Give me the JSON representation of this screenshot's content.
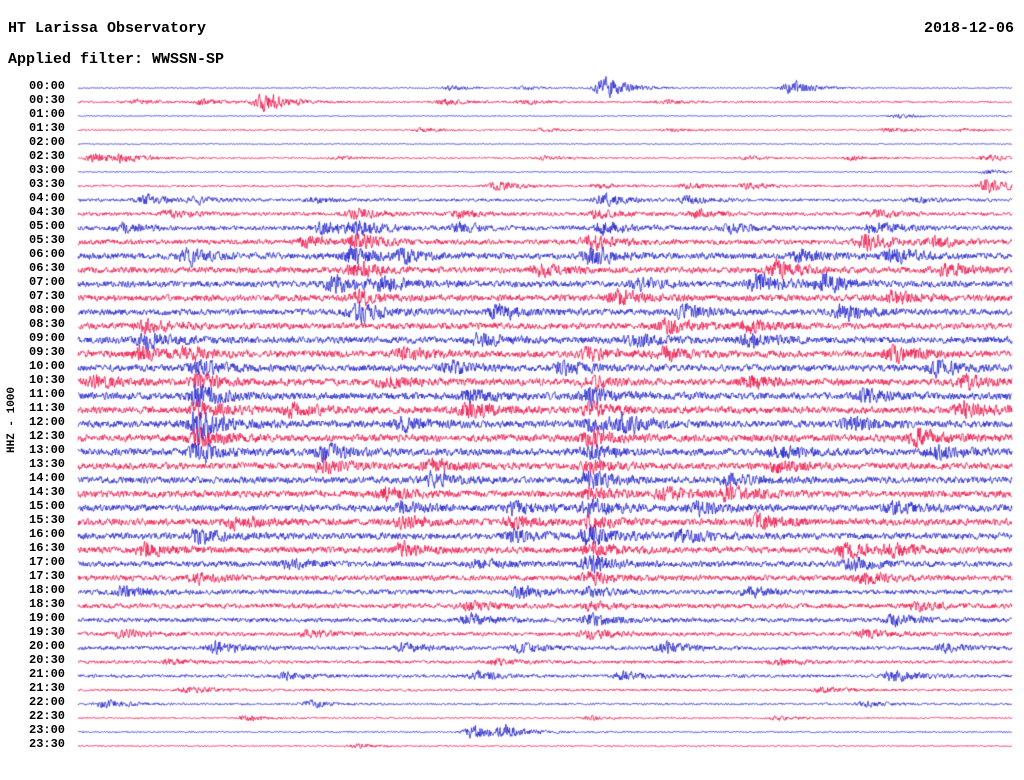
{
  "header": {
    "title": "HT Larissa Observatory",
    "date": "2018-12-06",
    "filter_label": "Applied filter: WWSSN-SP"
  },
  "y_axis_label": "HHZ - 1000",
  "colors": {
    "blue": "#2222cc",
    "red": "#ee1247",
    "background": "#ffffff",
    "text": "#000000"
  },
  "chart_data": {
    "type": "seismogram",
    "minutes_per_line": 30,
    "title": "HT Larissa Observatory",
    "date": "2018-12-06",
    "channel": "HHZ - 1000",
    "filter": "WWSSN-SP",
    "rows": [
      {
        "label": "00:00",
        "color": "blue",
        "base": 0.7,
        "bursts": [
          [
            0.565,
            14
          ],
          [
            0.765,
            9
          ],
          [
            0.4,
            2.5
          ],
          [
            0.48,
            2
          ]
        ]
      },
      {
        "label": "00:30",
        "color": "red",
        "base": 1.2,
        "bursts": [
          [
            0.065,
            3
          ],
          [
            0.135,
            3
          ],
          [
            0.2,
            12
          ],
          [
            0.395,
            3.5
          ],
          [
            0.48,
            2.5
          ],
          [
            0.63,
            2.5
          ]
        ]
      },
      {
        "label": "01:00",
        "color": "blue",
        "base": 0.6,
        "bursts": [
          [
            0.88,
            2.5
          ]
        ]
      },
      {
        "label": "01:30",
        "color": "red",
        "base": 0.9,
        "bursts": [
          [
            0.37,
            2.5
          ],
          [
            0.5,
            2
          ],
          [
            0.635,
            2
          ],
          [
            0.87,
            2.5
          ],
          [
            0.95,
            2
          ]
        ]
      },
      {
        "label": "02:00",
        "color": "blue",
        "base": 0.6,
        "bursts": []
      },
      {
        "label": "02:30",
        "color": "red",
        "base": 1.0,
        "bursts": [
          [
            0.02,
            6
          ],
          [
            0.05,
            4
          ],
          [
            0.28,
            2
          ],
          [
            0.5,
            2.5
          ],
          [
            0.72,
            2
          ],
          [
            0.83,
            2.5
          ],
          [
            0.975,
            3.5
          ]
        ]
      },
      {
        "label": "03:00",
        "color": "blue",
        "base": 0.7,
        "bursts": [
          [
            0.975,
            2.5
          ]
        ]
      },
      {
        "label": "03:30",
        "color": "red",
        "base": 1.3,
        "bursts": [
          [
            0.45,
            5
          ],
          [
            0.56,
            2.5
          ],
          [
            0.655,
            3.5
          ],
          [
            0.72,
            3.5
          ],
          [
            0.975,
            9
          ]
        ]
      },
      {
        "label": "04:00",
        "color": "blue",
        "base": 1.8,
        "bursts": [
          [
            0.075,
            6
          ],
          [
            0.13,
            3.5
          ],
          [
            0.255,
            3
          ],
          [
            0.565,
            7
          ],
          [
            0.655,
            4.5
          ],
          [
            0.9,
            3
          ]
        ]
      },
      {
        "label": "04:30",
        "color": "red",
        "base": 2.2,
        "bursts": [
          [
            0.1,
            5
          ],
          [
            0.3,
            6
          ],
          [
            0.41,
            4.5
          ],
          [
            0.555,
            5
          ],
          [
            0.665,
            4.5
          ],
          [
            0.855,
            4.5
          ]
        ]
      },
      {
        "label": "05:00",
        "color": "blue",
        "base": 2.8,
        "bursts": [
          [
            0.05,
            5
          ],
          [
            0.265,
            7
          ],
          [
            0.3,
            8
          ],
          [
            0.41,
            6
          ],
          [
            0.565,
            8
          ],
          [
            0.7,
            5
          ],
          [
            0.855,
            7
          ]
        ]
      },
      {
        "label": "05:30",
        "color": "red",
        "base": 3.2,
        "bursts": [
          [
            0.245,
            7
          ],
          [
            0.3,
            8
          ],
          [
            0.55,
            9
          ],
          [
            0.845,
            9
          ],
          [
            0.92,
            5
          ]
        ]
      },
      {
        "label": "06:00",
        "color": "blue",
        "base": 3.8,
        "bursts": [
          [
            0.12,
            9
          ],
          [
            0.295,
            11
          ],
          [
            0.35,
            7
          ],
          [
            0.55,
            11
          ],
          [
            0.775,
            7
          ],
          [
            0.875,
            9
          ]
        ]
      },
      {
        "label": "06:30",
        "color": "red",
        "base": 3.8,
        "bursts": [
          [
            0.3,
            9
          ],
          [
            0.5,
            7
          ],
          [
            0.75,
            9
          ],
          [
            0.93,
            7
          ]
        ]
      },
      {
        "label": "07:00",
        "color": "blue",
        "base": 4.0,
        "bursts": [
          [
            0.275,
            9
          ],
          [
            0.33,
            8
          ],
          [
            0.6,
            7
          ],
          [
            0.73,
            11
          ],
          [
            0.8,
            9
          ]
        ]
      },
      {
        "label": "07:30",
        "color": "red",
        "base": 4.0,
        "bursts": [
          [
            0.3,
            7
          ],
          [
            0.58,
            9
          ],
          [
            0.875,
            7
          ]
        ]
      },
      {
        "label": "08:00",
        "color": "blue",
        "base": 4.0,
        "bursts": [
          [
            0.3,
            11
          ],
          [
            0.45,
            9
          ],
          [
            0.65,
            7
          ],
          [
            0.82,
            9
          ]
        ]
      },
      {
        "label": "08:30",
        "color": "red",
        "base": 4.0,
        "bursts": [
          [
            0.075,
            7
          ],
          [
            0.63,
            9
          ],
          [
            0.72,
            7
          ]
        ]
      },
      {
        "label": "09:00",
        "color": "blue",
        "base": 4.2,
        "bursts": [
          [
            0.075,
            9
          ],
          [
            0.43,
            7
          ],
          [
            0.6,
            7
          ],
          [
            0.72,
            7
          ]
        ]
      },
      {
        "label": "09:30",
        "color": "red",
        "base": 4.2,
        "bursts": [
          [
            0.07,
            9
          ],
          [
            0.12,
            7
          ],
          [
            0.35,
            7
          ],
          [
            0.55,
            7
          ],
          [
            0.63,
            7
          ],
          [
            0.875,
            9
          ]
        ]
      },
      {
        "label": "10:00",
        "color": "blue",
        "base": 4.2,
        "bursts": [
          [
            0.13,
            9
          ],
          [
            0.4,
            7
          ],
          [
            0.52,
            7
          ],
          [
            0.92,
            9
          ]
        ]
      },
      {
        "label": "10:30",
        "color": "red",
        "base": 4.2,
        "bursts": [
          [
            0.02,
            7
          ],
          [
            0.13,
            9
          ],
          [
            0.33,
            7
          ],
          [
            0.55,
            7
          ],
          [
            0.72,
            7
          ],
          [
            0.95,
            7
          ]
        ]
      },
      {
        "label": "11:00",
        "color": "blue",
        "base": 4.5,
        "bursts": [
          [
            0.13,
            14
          ],
          [
            0.42,
            7
          ],
          [
            0.55,
            9
          ],
          [
            0.845,
            7
          ]
        ]
      },
      {
        "label": "11:30",
        "color": "red",
        "base": 4.5,
        "bursts": [
          [
            0.13,
            9
          ],
          [
            0.23,
            7
          ],
          [
            0.42,
            9
          ],
          [
            0.55,
            7
          ],
          [
            0.95,
            9
          ]
        ]
      },
      {
        "label": "12:00",
        "color": "blue",
        "base": 4.5,
        "bursts": [
          [
            0.13,
            18
          ],
          [
            0.35,
            7
          ],
          [
            0.55,
            7
          ],
          [
            0.585,
            9
          ],
          [
            0.83,
            7
          ]
        ]
      },
      {
        "label": "12:30",
        "color": "red",
        "base": 4.5,
        "bursts": [
          [
            0.13,
            10
          ],
          [
            0.55,
            9
          ],
          [
            0.9,
            9
          ]
        ]
      },
      {
        "label": "13:00",
        "color": "blue",
        "base": 4.5,
        "bursts": [
          [
            0.13,
            12
          ],
          [
            0.265,
            9
          ],
          [
            0.55,
            7
          ],
          [
            0.75,
            7
          ],
          [
            0.92,
            7
          ]
        ]
      },
      {
        "label": "13:30",
        "color": "red",
        "base": 4.2,
        "bursts": [
          [
            0.265,
            9
          ],
          [
            0.38,
            7
          ],
          [
            0.55,
            7
          ],
          [
            0.75,
            7
          ]
        ]
      },
      {
        "label": "14:00",
        "color": "blue",
        "base": 4.2,
        "bursts": [
          [
            0.38,
            7
          ],
          [
            0.55,
            11
          ],
          [
            0.7,
            7
          ]
        ]
      },
      {
        "label": "14:30",
        "color": "red",
        "base": 4.2,
        "bursts": [
          [
            0.33,
            7
          ],
          [
            0.55,
            7
          ],
          [
            0.63,
            7
          ],
          [
            0.7,
            9
          ]
        ]
      },
      {
        "label": "15:00",
        "color": "blue",
        "base": 4.2,
        "bursts": [
          [
            0.35,
            7
          ],
          [
            0.47,
            7
          ],
          [
            0.55,
            9
          ],
          [
            0.665,
            7
          ],
          [
            0.875,
            7
          ]
        ]
      },
      {
        "label": "15:30",
        "color": "red",
        "base": 4.2,
        "bursts": [
          [
            0.17,
            7
          ],
          [
            0.35,
            7
          ],
          [
            0.47,
            7
          ],
          [
            0.55,
            7
          ],
          [
            0.73,
            9
          ]
        ]
      },
      {
        "label": "16:00",
        "color": "blue",
        "base": 4.2,
        "bursts": [
          [
            0.13,
            7
          ],
          [
            0.47,
            7
          ],
          [
            0.55,
            11
          ],
          [
            0.65,
            7
          ]
        ]
      },
      {
        "label": "16:30",
        "color": "red",
        "base": 4.0,
        "bursts": [
          [
            0.075,
            7
          ],
          [
            0.35,
            7
          ],
          [
            0.55,
            9
          ],
          [
            0.82,
            9
          ],
          [
            0.875,
            7
          ]
        ]
      },
      {
        "label": "17:00",
        "color": "blue",
        "base": 3.6,
        "bursts": [
          [
            0.225,
            5
          ],
          [
            0.43,
            5
          ],
          [
            0.55,
            11
          ],
          [
            0.83,
            7
          ]
        ]
      },
      {
        "label": "17:30",
        "color": "red",
        "base": 3.4,
        "bursts": [
          [
            0.13,
            5
          ],
          [
            0.55,
            7
          ],
          [
            0.845,
            7
          ]
        ]
      },
      {
        "label": "18:00",
        "color": "blue",
        "base": 3.0,
        "bursts": [
          [
            0.05,
            7
          ],
          [
            0.475,
            7
          ],
          [
            0.55,
            5
          ],
          [
            0.72,
            5
          ]
        ]
      },
      {
        "label": "18:30",
        "color": "red",
        "base": 3.0,
        "bursts": [
          [
            0.42,
            5
          ],
          [
            0.55,
            5
          ],
          [
            0.9,
            5
          ]
        ]
      },
      {
        "label": "19:00",
        "color": "blue",
        "base": 2.8,
        "bursts": [
          [
            0.42,
            7
          ],
          [
            0.55,
            7
          ],
          [
            0.875,
            7
          ]
        ]
      },
      {
        "label": "19:30",
        "color": "red",
        "base": 2.5,
        "bursts": [
          [
            0.05,
            4
          ],
          [
            0.25,
            4
          ],
          [
            0.55,
            5
          ],
          [
            0.845,
            5
          ]
        ]
      },
      {
        "label": "20:00",
        "color": "blue",
        "base": 2.4,
        "bursts": [
          [
            0.15,
            7
          ],
          [
            0.35,
            5
          ],
          [
            0.475,
            5
          ],
          [
            0.63,
            7
          ],
          [
            0.93,
            5
          ]
        ]
      },
      {
        "label": "20:30",
        "color": "red",
        "base": 2.0,
        "bursts": [
          [
            0.1,
            3.5
          ],
          [
            0.45,
            3.5
          ],
          [
            0.75,
            3.5
          ]
        ]
      },
      {
        "label": "21:00",
        "color": "blue",
        "base": 2.0,
        "bursts": [
          [
            0.225,
            4
          ],
          [
            0.43,
            5
          ],
          [
            0.585,
            5
          ],
          [
            0.875,
            7
          ]
        ]
      },
      {
        "label": "21:30",
        "color": "red",
        "base": 1.5,
        "bursts": [
          [
            0.12,
            4
          ],
          [
            0.8,
            3.5
          ]
        ]
      },
      {
        "label": "22:00",
        "color": "blue",
        "base": 1.2,
        "bursts": [
          [
            0.03,
            5
          ],
          [
            0.25,
            4
          ],
          [
            0.845,
            3.5
          ]
        ]
      },
      {
        "label": "22:30",
        "color": "red",
        "base": 1.0,
        "bursts": [
          [
            0.18,
            3.5
          ],
          [
            0.55,
            2.5
          ],
          [
            0.75,
            2.5
          ]
        ]
      },
      {
        "label": "23:00",
        "color": "blue",
        "base": 0.9,
        "bursts": [
          [
            0.425,
            9
          ],
          [
            0.46,
            6
          ]
        ]
      },
      {
        "label": "23:30",
        "color": "red",
        "base": 0.9,
        "bursts": [
          [
            0.3,
            2.5
          ]
        ]
      }
    ]
  }
}
